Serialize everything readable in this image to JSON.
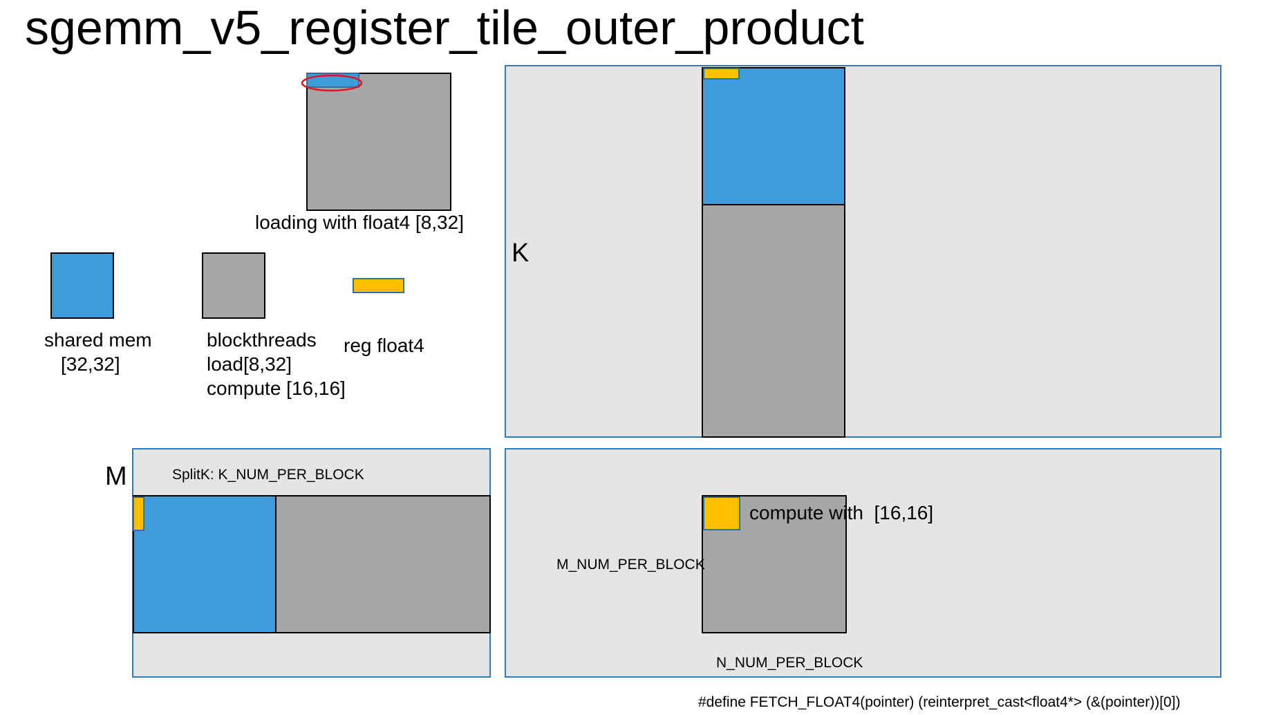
{
  "title": "sgemm_v5_register_tile_outer_product",
  "load_tile": {
    "caption": "loading with float4 [8,32]"
  },
  "legend": {
    "shared_mem": {
      "line1": "shared mem",
      "line2": "[32,32]"
    },
    "blockthreads": {
      "line1": "blockthreads",
      "line2": "load[8,32]",
      "line3": "compute [16,16]"
    },
    "reg": {
      "label": "reg float4"
    }
  },
  "matrix_b": {
    "dim_label": "K"
  },
  "matrix_a": {
    "dim_label": "M",
    "splitk_label": "SplitK: K_NUM_PER_BLOCK"
  },
  "matrix_c": {
    "compute_label": "compute with  [16,16]",
    "m_label": "M_NUM_PER_BLOCK",
    "n_label": "N_NUM_PER_BLOCK"
  },
  "footer": {
    "define": "#define FETCH_FLOAT4(pointer) (reinterpret_cast<float4*> (&(pointer))[0])"
  },
  "colors": {
    "shared_mem": "#3f9cdb",
    "blockthreads": "#a6a6a6",
    "reg_float4": "#ffc000",
    "panel_bg": "#e5e5e5",
    "panel_border": "#2e7bbf",
    "highlight": "#e0141e"
  }
}
